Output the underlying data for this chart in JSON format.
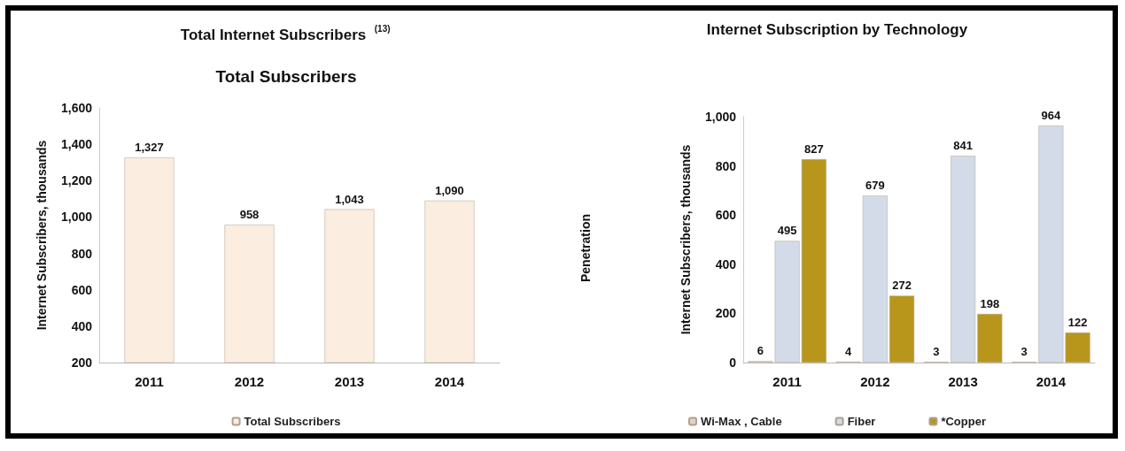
{
  "chart_data": [
    {
      "type": "bar",
      "title": "Total Internet Subscribers $^{(13)}$",
      "subtitle": "Total Subscribers",
      "ylabel": "Internet Subscribers, thousands",
      "categories": [
        "2011",
        "2012",
        "2013",
        "2014"
      ],
      "series": [
        {
          "name": "Total Subscribers",
          "color": "#fbeee0",
          "values": [
            1327,
            958,
            1043,
            1090
          ],
          "value_labels": [
            "1,327",
            "958",
            "1,043",
            "1,090"
          ]
        }
      ],
      "ylim": [
        200,
        1600
      ],
      "yticks": [
        200,
        400,
        600,
        800,
        {
          "value": 1000,
          "label": "1,000"
        },
        {
          "value": 1200,
          "label": "1,200"
        },
        {
          "value": 1400,
          "label": "1,400"
        },
        {
          "value": 1600,
          "label": "1,600"
        }
      ],
      "grid": false,
      "legend": "bottom"
    },
    {
      "type": "bar",
      "title": "Internet Subscription by Technology",
      "ylabel": "Internet Subscribers, thousands",
      "annotations": [
        "Penetration"
      ],
      "categories": [
        "2011",
        "2012",
        "2013",
        "2014"
      ],
      "series": [
        {
          "name": "Wi-Max , Cable",
          "color": "#e3d3c3",
          "values": [
            6,
            4,
            3,
            3
          ]
        },
        {
          "name": "Fiber",
          "color": "#d3dbe8",
          "values": [
            495,
            679,
            841,
            964
          ]
        },
        {
          "name": "*Copper",
          "color": "#b8961c",
          "values": [
            827,
            272,
            198,
            122
          ]
        }
      ],
      "ylim": [
        0,
        1000
      ],
      "yticks": [
        0,
        200,
        400,
        600,
        800,
        {
          "value": 1000,
          "label": "1,000"
        }
      ],
      "grid": false,
      "legend": "bottom",
      "data_labels": true
    }
  ]
}
